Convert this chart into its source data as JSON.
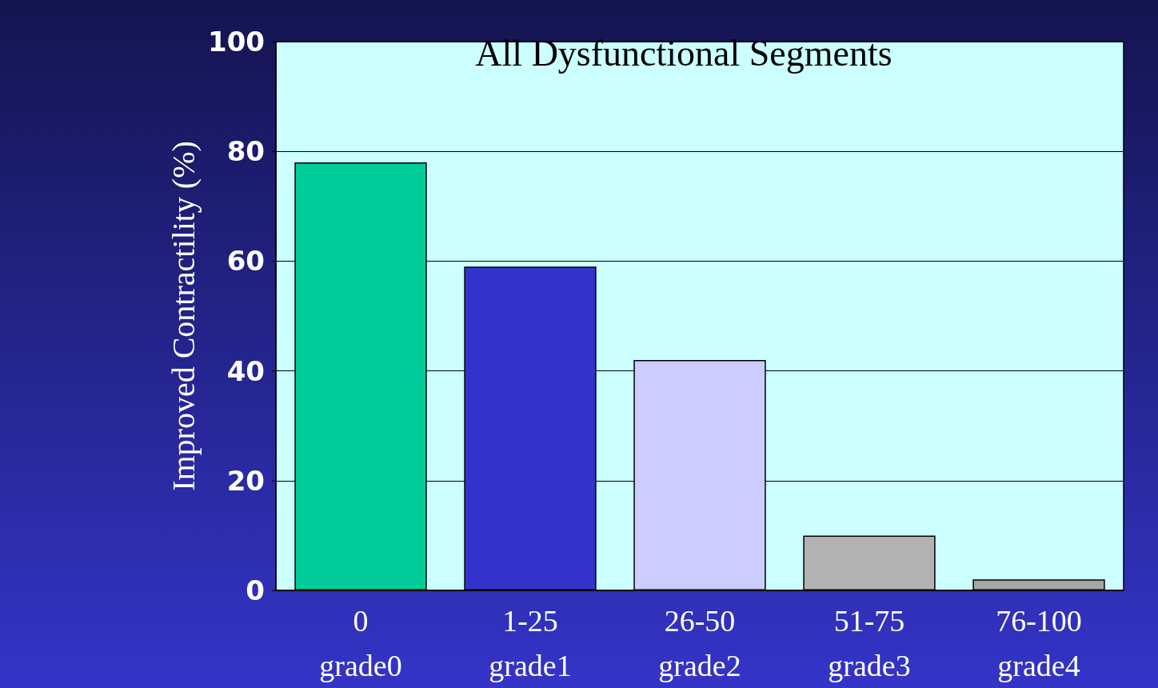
{
  "chart_data": {
    "type": "bar",
    "title": "All Dysfunctional Segments",
    "ylabel": "Improved Contractility (%)",
    "categories": [
      "0\ngrade0",
      "1-25\ngrade1",
      "26-50\ngrade2",
      "51-75\ngrade3",
      "76-100\ngrade4"
    ],
    "values": [
      78,
      59,
      42,
      10,
      2
    ],
    "colors": [
      "#00cc99",
      "#3333cc",
      "#ccccff",
      "#b2b2b2",
      "#a6a6a6"
    ],
    "ylim": [
      0,
      100
    ],
    "yticks": [
      0,
      20,
      40,
      60,
      80,
      100
    ],
    "grid": "y"
  }
}
